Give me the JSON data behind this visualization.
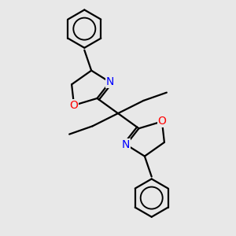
{
  "background_color": "#e8e8e8",
  "bond_color": "#000000",
  "bond_width": 1.6,
  "atom_colors": {
    "N": "#0000ff",
    "O": "#ff0000",
    "C": "#000000"
  },
  "font_size_atom": 10,
  "fig_size": [
    3.0,
    3.0
  ],
  "dpi": 100,
  "xlim": [
    0,
    10
  ],
  "ylim": [
    0,
    10
  ]
}
